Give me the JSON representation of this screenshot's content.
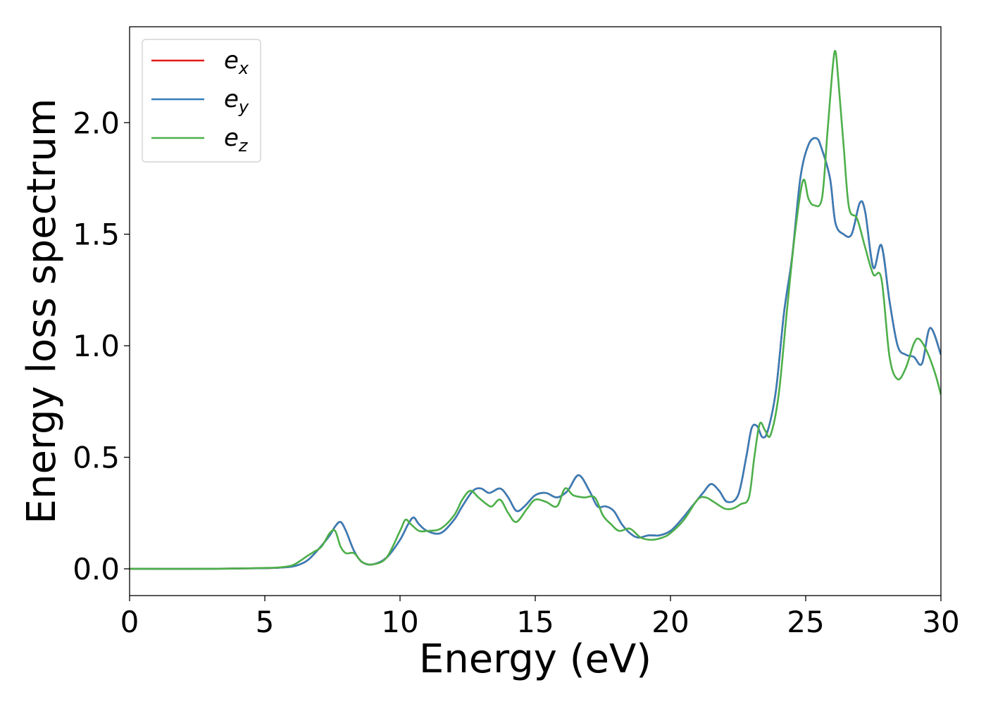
{
  "chart_data": {
    "type": "line",
    "title": "",
    "xlabel": "Energy (eV)",
    "ylabel": "Energy loss spectrum",
    "xlim": [
      0,
      30
    ],
    "ylim": [
      -0.12,
      2.43
    ],
    "xticks": [
      0,
      5,
      10,
      15,
      20,
      25,
      30
    ],
    "xtick_labels": [
      "0",
      "5",
      "10",
      "15",
      "20",
      "25",
      "30"
    ],
    "yticks": [
      0.0,
      0.5,
      1.0,
      1.5,
      2.0
    ],
    "ytick_labels": [
      "0.0",
      "0.5",
      "1.0",
      "1.5",
      "2.0"
    ],
    "grid": false,
    "legend_position": "top-left",
    "series": [
      {
        "name": "e_x",
        "legend": {
          "base": "e",
          "sub": "x"
        },
        "color": "#e41a1c",
        "x": [
          0,
          3,
          5,
          5.5,
          6,
          6.3,
          6.6,
          7,
          7.4,
          7.6,
          7.8,
          8,
          8.3,
          8.6,
          9,
          9.5,
          10,
          10.3,
          10.5,
          10.7,
          11,
          11.5,
          12,
          12.3,
          12.7,
          13,
          13.3,
          13.7,
          14,
          14.3,
          14.6,
          15,
          15.4,
          15.8,
          16.2,
          16.6,
          17,
          17.3,
          17.6,
          17.9,
          18.2,
          18.5,
          18.8,
          19.2,
          19.6,
          20,
          20.4,
          20.8,
          21.2,
          21.5,
          21.8,
          22.1,
          22.5,
          22.8,
          23,
          23.2,
          23.4,
          23.6,
          23.9,
          24.2,
          24.5,
          24.8,
          25.1,
          25.4,
          25.6,
          25.9,
          26.1,
          26.4,
          26.7,
          27,
          27.2,
          27.5,
          27.8,
          28.1,
          28.4,
          28.7,
          29,
          29.3,
          29.6,
          30
        ],
        "y": [
          0,
          0,
          0.003,
          0.005,
          0.01,
          0.02,
          0.04,
          0.09,
          0.15,
          0.19,
          0.21,
          0.17,
          0.08,
          0.03,
          0.02,
          0.05,
          0.13,
          0.2,
          0.23,
          0.2,
          0.17,
          0.16,
          0.22,
          0.28,
          0.35,
          0.36,
          0.34,
          0.36,
          0.32,
          0.26,
          0.28,
          0.33,
          0.34,
          0.32,
          0.35,
          0.42,
          0.35,
          0.28,
          0.28,
          0.26,
          0.2,
          0.16,
          0.14,
          0.15,
          0.15,
          0.17,
          0.22,
          0.28,
          0.34,
          0.38,
          0.35,
          0.3,
          0.33,
          0.5,
          0.63,
          0.64,
          0.59,
          0.62,
          0.8,
          1.15,
          1.4,
          1.75,
          1.9,
          1.93,
          1.88,
          1.75,
          1.55,
          1.5,
          1.5,
          1.64,
          1.6,
          1.35,
          1.45,
          1.2,
          1.0,
          0.96,
          0.95,
          0.92,
          1.08,
          0.96
        ]
      },
      {
        "name": "e_y",
        "legend": {
          "base": "e",
          "sub": "y"
        },
        "color": "#377eb8",
        "x": [
          0,
          3,
          5,
          5.5,
          6,
          6.3,
          6.6,
          7,
          7.4,
          7.6,
          7.8,
          8,
          8.3,
          8.6,
          9,
          9.5,
          10,
          10.3,
          10.5,
          10.7,
          11,
          11.5,
          12,
          12.3,
          12.7,
          13,
          13.3,
          13.7,
          14,
          14.3,
          14.6,
          15,
          15.4,
          15.8,
          16.2,
          16.6,
          17,
          17.3,
          17.6,
          17.9,
          18.2,
          18.5,
          18.8,
          19.2,
          19.6,
          20,
          20.4,
          20.8,
          21.2,
          21.5,
          21.8,
          22.1,
          22.5,
          22.8,
          23,
          23.2,
          23.4,
          23.6,
          23.9,
          24.2,
          24.5,
          24.8,
          25.1,
          25.4,
          25.6,
          25.9,
          26.1,
          26.4,
          26.7,
          27,
          27.2,
          27.5,
          27.8,
          28.1,
          28.4,
          28.7,
          29,
          29.3,
          29.6,
          30
        ],
        "y": [
          0,
          0,
          0.003,
          0.005,
          0.01,
          0.02,
          0.04,
          0.09,
          0.15,
          0.19,
          0.21,
          0.17,
          0.08,
          0.03,
          0.02,
          0.05,
          0.13,
          0.2,
          0.23,
          0.2,
          0.17,
          0.16,
          0.22,
          0.28,
          0.35,
          0.36,
          0.34,
          0.36,
          0.32,
          0.26,
          0.28,
          0.33,
          0.34,
          0.32,
          0.35,
          0.42,
          0.35,
          0.28,
          0.28,
          0.26,
          0.2,
          0.16,
          0.14,
          0.15,
          0.15,
          0.17,
          0.22,
          0.28,
          0.34,
          0.38,
          0.35,
          0.3,
          0.33,
          0.5,
          0.63,
          0.64,
          0.59,
          0.62,
          0.8,
          1.15,
          1.4,
          1.75,
          1.9,
          1.93,
          1.88,
          1.75,
          1.55,
          1.5,
          1.5,
          1.64,
          1.6,
          1.35,
          1.45,
          1.2,
          1.0,
          0.96,
          0.95,
          0.92,
          1.08,
          0.96
        ]
      },
      {
        "name": "e_z",
        "legend": {
          "base": "e",
          "sub": "z"
        },
        "color": "#4daf4a",
        "x": [
          0,
          3,
          5,
          5.5,
          6,
          6.3,
          6.6,
          6.8,
          7.1,
          7.4,
          7.6,
          7.8,
          8,
          8.3,
          8.6,
          9,
          9.5,
          10,
          10.2,
          10.4,
          10.7,
          11,
          11.5,
          12,
          12.3,
          12.6,
          12.9,
          13.2,
          13.4,
          13.7,
          14,
          14.3,
          14.7,
          15,
          15.4,
          15.8,
          16.1,
          16.4,
          16.8,
          17.2,
          17.5,
          17.8,
          18.1,
          18.5,
          18.9,
          19.3,
          19.7,
          20,
          20.5,
          21,
          21.3,
          21.6,
          22,
          22.3,
          22.6,
          22.9,
          23.1,
          23.3,
          23.5,
          23.7,
          24,
          24.3,
          24.6,
          24.9,
          25.1,
          25.3,
          25.6,
          25.8,
          26,
          26.1,
          26.2,
          26.4,
          26.6,
          26.9,
          27.2,
          27.5,
          27.8,
          28.1,
          28.4,
          28.7,
          29,
          29.2,
          29.5,
          29.8,
          30
        ],
        "y": [
          0,
          0,
          0.004,
          0.006,
          0.015,
          0.035,
          0.06,
          0.075,
          0.1,
          0.16,
          0.17,
          0.1,
          0.07,
          0.07,
          0.03,
          0.02,
          0.05,
          0.17,
          0.22,
          0.2,
          0.17,
          0.17,
          0.18,
          0.24,
          0.31,
          0.35,
          0.32,
          0.29,
          0.28,
          0.31,
          0.25,
          0.21,
          0.27,
          0.31,
          0.3,
          0.28,
          0.36,
          0.33,
          0.32,
          0.32,
          0.24,
          0.2,
          0.17,
          0.18,
          0.14,
          0.13,
          0.14,
          0.16,
          0.22,
          0.31,
          0.32,
          0.3,
          0.27,
          0.27,
          0.29,
          0.32,
          0.5,
          0.65,
          0.62,
          0.6,
          0.78,
          1.15,
          1.5,
          1.74,
          1.66,
          1.63,
          1.66,
          1.95,
          2.25,
          2.32,
          2.2,
          1.9,
          1.62,
          1.57,
          1.44,
          1.32,
          1.3,
          0.95,
          0.85,
          0.9,
          1.01,
          1.03,
          0.97,
          0.87,
          0.78
        ]
      }
    ]
  }
}
